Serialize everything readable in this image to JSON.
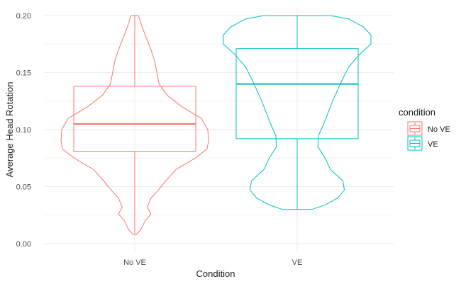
{
  "chart_data": {
    "type": "violin",
    "title": "",
    "xlabel": "Condition",
    "ylabel": "Average Head Rotation",
    "categories": [
      "No VE",
      "VE"
    ],
    "ylim": [
      0,
      0.2
    ],
    "yticks": [
      "0.00",
      "0.05",
      "0.10",
      "0.15",
      "0.20"
    ],
    "grid": true,
    "legend": {
      "title": "condition",
      "placement": "right",
      "entries": [
        "No VE",
        "VE"
      ]
    },
    "colors": {
      "No VE": "#F8766D",
      "VE": "#00BFC4"
    },
    "series": [
      {
        "name": "No VE",
        "box": {
          "whisker_low": 0.008,
          "q1": 0.081,
          "median": 0.105,
          "q3": 0.138,
          "whisker_high": 0.2
        },
        "violin_profile": [
          [
            0.008,
            0.02
          ],
          [
            0.012,
            0.08
          ],
          [
            0.02,
            0.14
          ],
          [
            0.026,
            0.22
          ],
          [
            0.032,
            0.17
          ],
          [
            0.04,
            0.22
          ],
          [
            0.047,
            0.32
          ],
          [
            0.055,
            0.42
          ],
          [
            0.065,
            0.56
          ],
          [
            0.075,
            0.82
          ],
          [
            0.083,
            0.98
          ],
          [
            0.09,
            1.0
          ],
          [
            0.1,
            0.99
          ],
          [
            0.11,
            0.9
          ],
          [
            0.12,
            0.64
          ],
          [
            0.13,
            0.44
          ],
          [
            0.14,
            0.33
          ],
          [
            0.15,
            0.3
          ],
          [
            0.16,
            0.27
          ],
          [
            0.17,
            0.22
          ],
          [
            0.18,
            0.16
          ],
          [
            0.19,
            0.1
          ],
          [
            0.2,
            0.05
          ]
        ]
      },
      {
        "name": "VE",
        "box": {
          "whisker_low": 0.03,
          "q1": 0.092,
          "median": 0.14,
          "q3": 0.171,
          "whisker_high": 0.2
        },
        "violin_profile": [
          [
            0.03,
            0.2
          ],
          [
            0.034,
            0.38
          ],
          [
            0.04,
            0.55
          ],
          [
            0.047,
            0.64
          ],
          [
            0.055,
            0.62
          ],
          [
            0.065,
            0.45
          ],
          [
            0.075,
            0.38
          ],
          [
            0.085,
            0.28
          ],
          [
            0.095,
            0.29
          ],
          [
            0.105,
            0.36
          ],
          [
            0.115,
            0.42
          ],
          [
            0.125,
            0.48
          ],
          [
            0.135,
            0.55
          ],
          [
            0.145,
            0.62
          ],
          [
            0.155,
            0.7
          ],
          [
            0.165,
            0.83
          ],
          [
            0.175,
            1.0
          ],
          [
            0.183,
            1.0
          ],
          [
            0.19,
            0.9
          ],
          [
            0.197,
            0.7
          ],
          [
            0.2,
            0.45
          ]
        ]
      }
    ]
  }
}
